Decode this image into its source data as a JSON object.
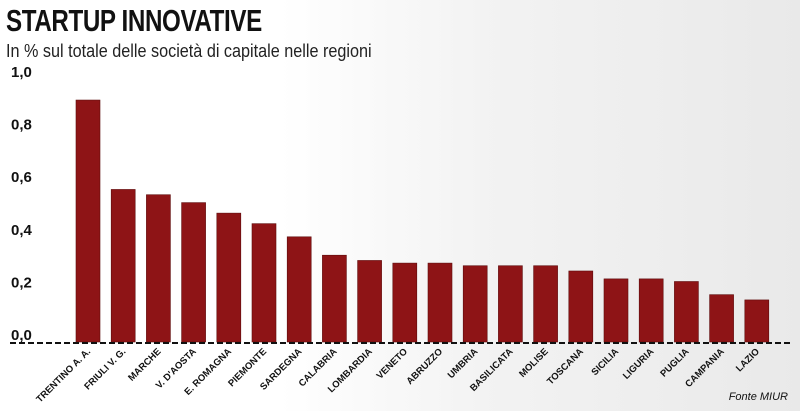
{
  "title": "STARTUP INNOVATIVE",
  "subtitle": "In % sul totale delle società di capitale nelle regioni",
  "source": "Fonte MIUR",
  "colors": {
    "bar": "#8e1416",
    "bar_edge": "#5e0c0d",
    "axis": "#111111"
  },
  "chart_data": {
    "type": "bar",
    "title": "STARTUP INNOVATIVE",
    "subtitle": "In % sul totale delle società di capitale nelle regioni",
    "categories": [
      "TRENTINO A. A.",
      "FRIULI V. G.",
      "MARCHE",
      "V. D'AOSTA",
      "E. ROMAGNA",
      "PIEMONTE",
      "SARDEGNA",
      "CALABRIA",
      "LOMBARDIA",
      "VENETO",
      "ABRUZZO",
      "UMBRIA",
      "BASILICATA",
      "MOLISE",
      "TOSCANA",
      "SICILIA",
      "LIGURIA",
      "PUGLIA",
      "CAMPANIA",
      "LAZIO"
    ],
    "values": [
      0.92,
      0.58,
      0.56,
      0.53,
      0.49,
      0.45,
      0.4,
      0.33,
      0.31,
      0.3,
      0.3,
      0.29,
      0.29,
      0.29,
      0.27,
      0.24,
      0.24,
      0.23,
      0.18,
      0.16
    ],
    "yticks": [
      "1,0",
      "0,8",
      "0,6",
      "0,4",
      "0,2",
      "0,0"
    ],
    "ytick_values": [
      1.0,
      0.8,
      0.6,
      0.4,
      0.2,
      0.0
    ],
    "ylim": [
      0,
      1.0
    ],
    "xlabel": "",
    "ylabel": "",
    "grid": false,
    "legend": "none"
  }
}
